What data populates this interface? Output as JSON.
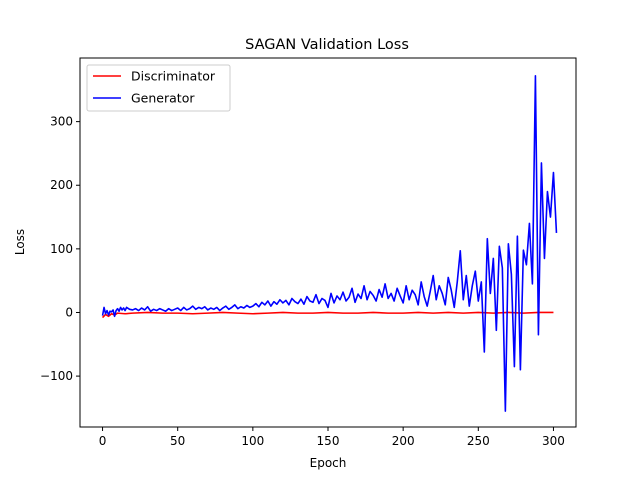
{
  "chart_data": {
    "type": "line",
    "title": "SAGAN Validation Loss",
    "xlabel": "Epoch",
    "ylabel": "Loss",
    "xlim": [
      -15,
      315
    ],
    "ylim": [
      -180,
      400
    ],
    "xticks": [
      0,
      50,
      100,
      150,
      200,
      250,
      300
    ],
    "yticks": [
      -100,
      0,
      100,
      200,
      300
    ],
    "grid": false,
    "legend": "upper-left",
    "series": [
      {
        "name": "Discriminator",
        "color": "#ff0000",
        "x": [
          0,
          2,
          4,
          6,
          8,
          10,
          15,
          20,
          30,
          40,
          50,
          60,
          70,
          80,
          90,
          100,
          110,
          120,
          130,
          140,
          150,
          160,
          170,
          180,
          190,
          200,
          210,
          220,
          230,
          240,
          250,
          260,
          270,
          280,
          290,
          300
        ],
        "values": [
          -8,
          -3,
          -6,
          -2,
          -4,
          -1,
          -2,
          -1,
          0,
          -1,
          -1,
          -2,
          -1,
          0,
          -1,
          -2,
          -1,
          0,
          -1,
          -1,
          0,
          -1,
          -1,
          0,
          -1,
          -1,
          0,
          -1,
          0,
          -1,
          0,
          -1,
          0,
          -1,
          0,
          0
        ]
      },
      {
        "name": "Generator",
        "color": "#0000ff",
        "x": [
          0,
          1,
          2,
          3,
          4,
          5,
          6,
          7,
          8,
          9,
          10,
          11,
          12,
          13,
          14,
          15,
          16,
          18,
          20,
          22,
          24,
          26,
          28,
          30,
          32,
          34,
          36,
          38,
          40,
          42,
          44,
          46,
          48,
          50,
          52,
          54,
          56,
          58,
          60,
          62,
          64,
          66,
          68,
          70,
          72,
          74,
          76,
          78,
          80,
          82,
          84,
          86,
          88,
          90,
          92,
          94,
          96,
          98,
          100,
          102,
          104,
          106,
          108,
          110,
          112,
          114,
          116,
          118,
          120,
          122,
          124,
          126,
          128,
          130,
          132,
          134,
          136,
          138,
          140,
          142,
          144,
          146,
          148,
          150,
          152,
          154,
          156,
          158,
          160,
          162,
          164,
          166,
          168,
          170,
          172,
          174,
          176,
          178,
          180,
          182,
          184,
          186,
          188,
          190,
          192,
          194,
          196,
          198,
          200,
          202,
          204,
          206,
          208,
          210,
          212,
          214,
          216,
          218,
          220,
          222,
          224,
          226,
          228,
          230,
          232,
          234,
          236,
          238,
          240,
          242,
          244,
          246,
          248,
          250,
          252,
          254,
          256,
          258,
          260,
          262,
          264,
          266,
          268,
          270,
          272,
          274,
          276,
          278,
          280,
          282,
          284,
          286,
          288,
          290,
          292,
          294,
          296,
          298,
          300,
          302
        ],
        "values": [
          -5,
          8,
          -2,
          3,
          -4,
          2,
          1,
          4,
          -6,
          3,
          6,
          2,
          8,
          4,
          7,
          3,
          8,
          5,
          4,
          6,
          3,
          7,
          4,
          9,
          2,
          5,
          3,
          6,
          4,
          2,
          6,
          3,
          5,
          7,
          3,
          8,
          4,
          6,
          10,
          5,
          8,
          6,
          9,
          4,
          7,
          5,
          8,
          3,
          7,
          10,
          5,
          8,
          12,
          6,
          9,
          7,
          11,
          8,
          10,
          14,
          9,
          16,
          12,
          18,
          10,
          17,
          13,
          20,
          15,
          19,
          12,
          22,
          17,
          14,
          21,
          13,
          25,
          18,
          16,
          28,
          14,
          22,
          19,
          8,
          30,
          15,
          26,
          20,
          32,
          18,
          24,
          38,
          16,
          29,
          22,
          42,
          20,
          33,
          27,
          18,
          36,
          24,
          45,
          22,
          30,
          18,
          38,
          26,
          15,
          42,
          20,
          35,
          28,
          12,
          48,
          25,
          10,
          33,
          58,
          20,
          42,
          30,
          12,
          55,
          35,
          8,
          48,
          97,
          20,
          58,
          10,
          42,
          65,
          18,
          48,
          -62,
          116,
          30,
          85,
          -28,
          104,
          70,
          -155,
          108,
          60,
          -85,
          120,
          -90,
          98,
          75,
          140,
          45,
          372,
          -35,
          235,
          85,
          190,
          150,
          220,
          125
        ]
      }
    ]
  }
}
